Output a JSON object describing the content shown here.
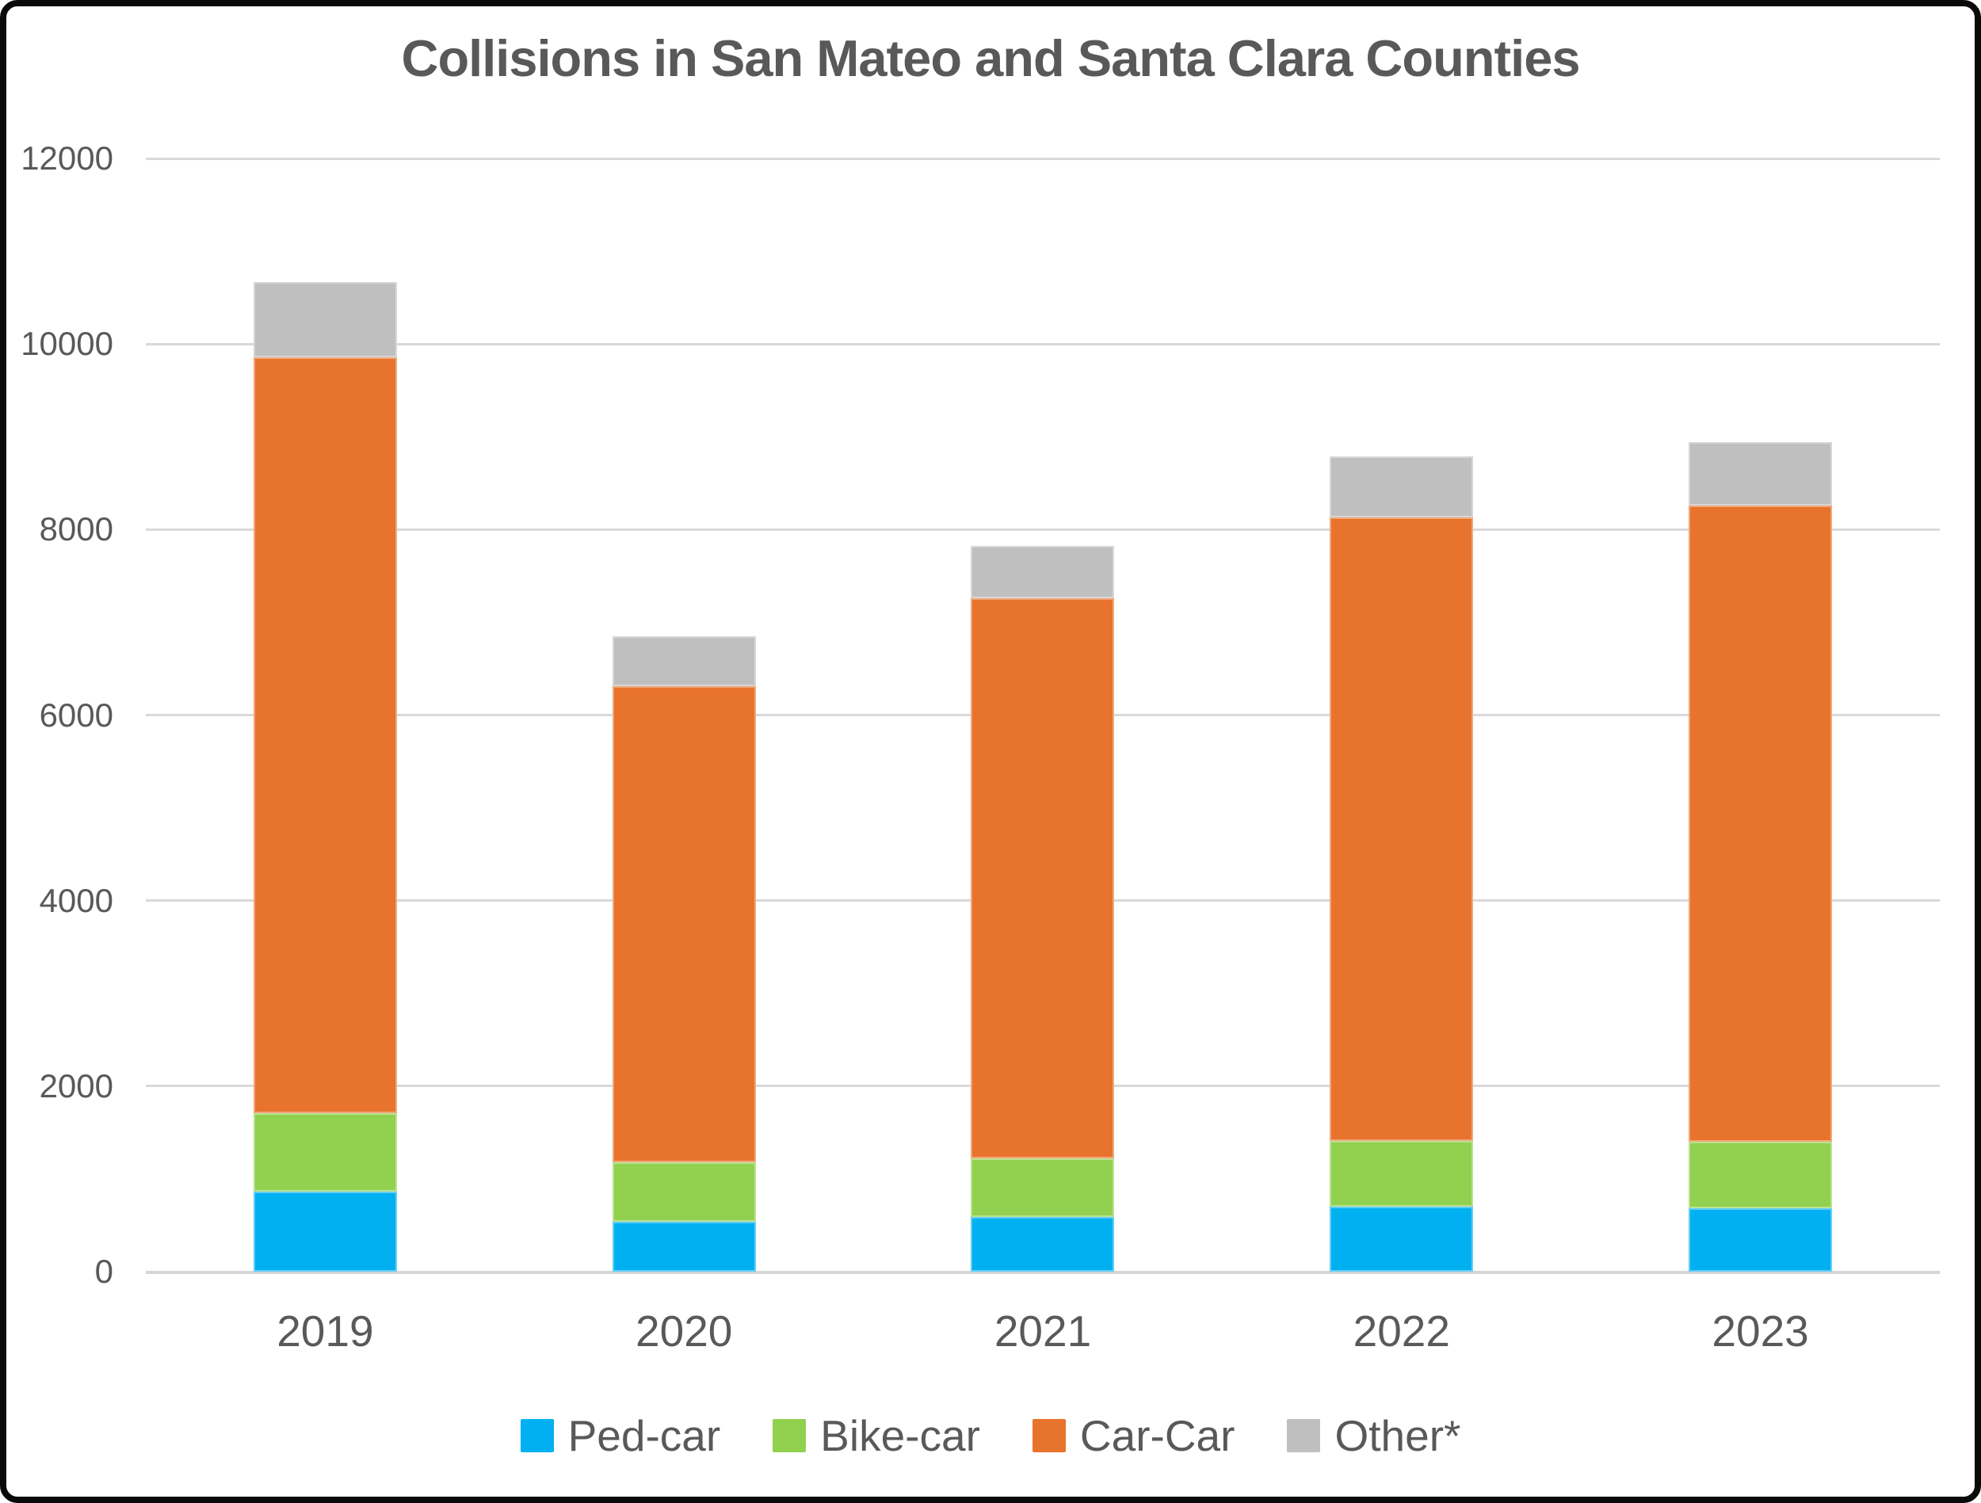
{
  "window": {
    "background_color": "#FFFFFF",
    "frame_border_color": "#0A0A0A"
  },
  "chart_data": {
    "type": "bar",
    "stacked": true,
    "title": "Collisions in San Mateo and Santa Clara Counties",
    "categories": [
      "2019",
      "2020",
      "2021",
      "2022",
      "2023"
    ],
    "series": [
      {
        "name": "Ped-car",
        "color": "#00B0F0",
        "values": [
          860,
          540,
          590,
          700,
          680
        ]
      },
      {
        "name": "Bike-car",
        "color": "#92D050",
        "values": [
          850,
          640,
          630,
          710,
          720
        ]
      },
      {
        "name": "Car-Car",
        "color": "#E8732D",
        "values": [
          8150,
          5130,
          6040,
          6720,
          6860
        ]
      },
      {
        "name": "Other*",
        "color": "#BFBFBF",
        "values": [
          810,
          540,
          560,
          660,
          680
        ]
      }
    ],
    "stack_totals": [
      10670,
      6850,
      7820,
      8790,
      8940
    ],
    "xlabel": "",
    "ylabel": "",
    "ylim": [
      0,
      12000
    ],
    "ytick_step": 2000,
    "yticks": [
      "0",
      "2000",
      "4000",
      "6000",
      "8000",
      "10000",
      "12000"
    ],
    "grid": true,
    "gridline_color": "#D9D9D9",
    "axis_line_color": "#D5D5D5",
    "text_color": "#595959",
    "legend_position": "bottom"
  }
}
